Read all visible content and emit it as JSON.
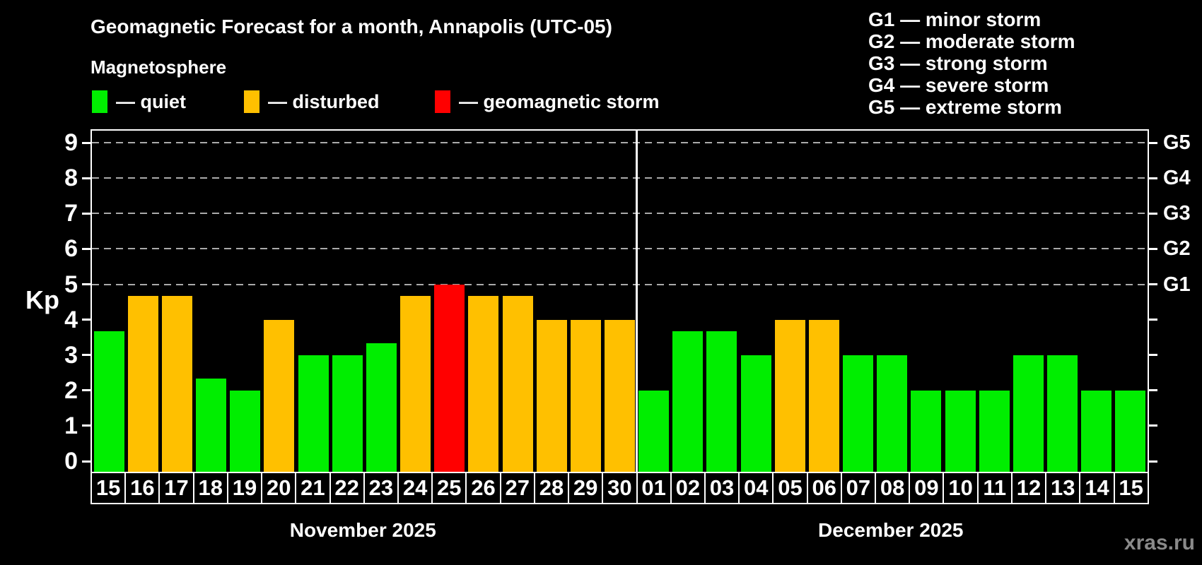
{
  "header": {
    "title": "Geomagnetic Forecast for a month, Annapolis (UTC-05)",
    "subtitle": "Magnetosphere"
  },
  "legend": {
    "items": [
      {
        "key": "quiet",
        "label": "— quiet"
      },
      {
        "key": "disturbed",
        "label": "— disturbed"
      },
      {
        "key": "storm",
        "label": "— geomagnetic storm"
      }
    ]
  },
  "g_scale_legend": {
    "lines": [
      "G1 — minor storm",
      "G2 — moderate storm",
      "G3 — strong storm",
      "G4 — severe storm",
      "G5 — extreme storm"
    ]
  },
  "colors": {
    "quiet": "#00ee00",
    "disturbed": "#ffc000",
    "storm": "#ff0000",
    "grid": "#aaaaaa",
    "axis": "#ffffff",
    "watermark": "#8a8a8a"
  },
  "chart_data": {
    "type": "bar",
    "title": "Geomagnetic Forecast for a month, Annapolis (UTC-05)",
    "xlabel": "",
    "ylabel": "Kp",
    "ylim": [
      0,
      9
    ],
    "yticks": [
      0,
      1,
      2,
      3,
      4,
      5,
      6,
      7,
      8,
      9
    ],
    "grid_levels": [
      5,
      6,
      7,
      8,
      9
    ],
    "grid_style": "dashed horizontal",
    "legend_position": "top-left",
    "right_axis_labels": [
      {
        "kp": 5,
        "label": "G1"
      },
      {
        "kp": 6,
        "label": "G2"
      },
      {
        "kp": 7,
        "label": "G3"
      },
      {
        "kp": 8,
        "label": "G4"
      },
      {
        "kp": 9,
        "label": "G5"
      }
    ],
    "months": [
      {
        "label": "November 2025",
        "days": [
          {
            "date": "15",
            "kp": 3.67,
            "level": "quiet"
          },
          {
            "date": "16",
            "kp": 4.67,
            "level": "disturbed"
          },
          {
            "date": "17",
            "kp": 4.67,
            "level": "disturbed"
          },
          {
            "date": "18",
            "kp": 2.33,
            "level": "quiet"
          },
          {
            "date": "19",
            "kp": 2.0,
            "level": "quiet"
          },
          {
            "date": "20",
            "kp": 4.0,
            "level": "disturbed"
          },
          {
            "date": "21",
            "kp": 3.0,
            "level": "quiet"
          },
          {
            "date": "22",
            "kp": 3.0,
            "level": "quiet"
          },
          {
            "date": "23",
            "kp": 3.33,
            "level": "quiet"
          },
          {
            "date": "24",
            "kp": 4.67,
            "level": "disturbed"
          },
          {
            "date": "25",
            "kp": 5.0,
            "level": "storm"
          },
          {
            "date": "26",
            "kp": 4.67,
            "level": "disturbed"
          },
          {
            "date": "27",
            "kp": 4.67,
            "level": "disturbed"
          },
          {
            "date": "28",
            "kp": 4.0,
            "level": "disturbed"
          },
          {
            "date": "29",
            "kp": 4.0,
            "level": "disturbed"
          },
          {
            "date": "30",
            "kp": 4.0,
            "level": "disturbed"
          }
        ]
      },
      {
        "label": "December 2025",
        "days": [
          {
            "date": "01",
            "kp": 2.0,
            "level": "quiet"
          },
          {
            "date": "02",
            "kp": 3.67,
            "level": "quiet"
          },
          {
            "date": "03",
            "kp": 3.67,
            "level": "quiet"
          },
          {
            "date": "04",
            "kp": 3.0,
            "level": "quiet"
          },
          {
            "date": "05",
            "kp": 4.0,
            "level": "disturbed"
          },
          {
            "date": "06",
            "kp": 4.0,
            "level": "disturbed"
          },
          {
            "date": "07",
            "kp": 3.0,
            "level": "quiet"
          },
          {
            "date": "08",
            "kp": 3.0,
            "level": "quiet"
          },
          {
            "date": "09",
            "kp": 2.0,
            "level": "quiet"
          },
          {
            "date": "10",
            "kp": 2.0,
            "level": "quiet"
          },
          {
            "date": "11",
            "kp": 2.0,
            "level": "quiet"
          },
          {
            "date": "12",
            "kp": 3.0,
            "level": "quiet"
          },
          {
            "date": "13",
            "kp": 3.0,
            "level": "quiet"
          },
          {
            "date": "14",
            "kp": 2.0,
            "level": "quiet"
          },
          {
            "date": "15",
            "kp": 2.0,
            "level": "quiet"
          }
        ]
      }
    ]
  },
  "watermark": "xras.ru"
}
